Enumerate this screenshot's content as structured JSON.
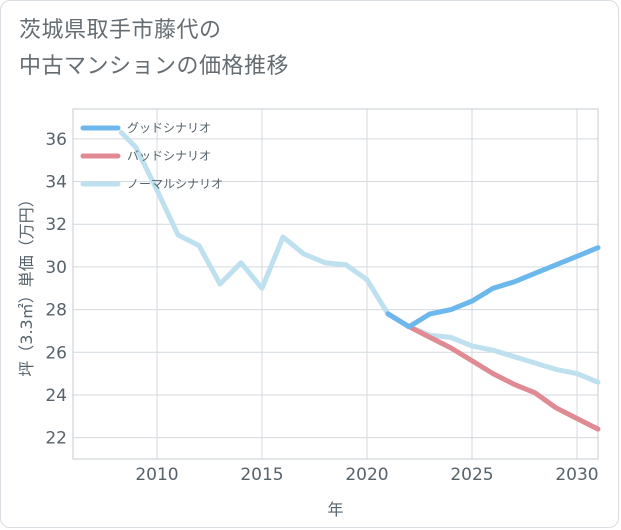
{
  "title_lines": [
    "茨城県取手市藤代の",
    "中古マンションの価格推移"
  ],
  "chart_data": {
    "type": "line",
    "xlabel": "年",
    "ylabel": "坪（3.3㎡）単価（万円）",
    "xlim": [
      2006.0,
      2031.0
    ],
    "ylim": [
      21.0,
      37.4
    ],
    "xticks": [
      2010,
      2015,
      2020,
      2025,
      2030
    ],
    "yticks": [
      22,
      24,
      26,
      28,
      30,
      32,
      34,
      36
    ],
    "grid": true,
    "legend_position": "top-left",
    "series": [
      {
        "name": "グッドシナリオ",
        "color": "#6cb8ec",
        "x": [
          2021,
          2022,
          2023,
          2024,
          2025,
          2026,
          2027,
          2028,
          2029,
          2030,
          2031
        ],
        "y": [
          27.8,
          27.2,
          27.8,
          28.0,
          28.4,
          29.0,
          29.3,
          29.7,
          30.1,
          30.5,
          30.9
        ]
      },
      {
        "name": "バッドシナリオ",
        "color": "#e08a93",
        "x": [
          2021,
          2022,
          2023,
          2024,
          2025,
          2026,
          2027,
          2028,
          2029,
          2030,
          2031
        ],
        "y": [
          27.8,
          27.2,
          26.7,
          26.2,
          25.6,
          25.0,
          24.5,
          24.1,
          23.4,
          22.9,
          22.4
        ]
      },
      {
        "name": "ノーマルシナリオ",
        "color": "#bfe0ee",
        "x": [
          2008.3,
          2009,
          2010,
          2011,
          2012,
          2013,
          2014,
          2015,
          2016,
          2017,
          2018,
          2019,
          2020,
          2021,
          2022,
          2023,
          2024,
          2025,
          2026,
          2027,
          2028,
          2029,
          2030,
          2031
        ],
        "y": [
          36.3,
          35.6,
          33.6,
          31.5,
          31.0,
          29.2,
          30.2,
          29.0,
          31.4,
          30.6,
          30.2,
          30.1,
          29.4,
          27.8,
          27.2,
          26.8,
          26.7,
          26.3,
          26.1,
          25.8,
          25.5,
          25.2,
          25.0,
          24.6
        ]
      }
    ]
  }
}
